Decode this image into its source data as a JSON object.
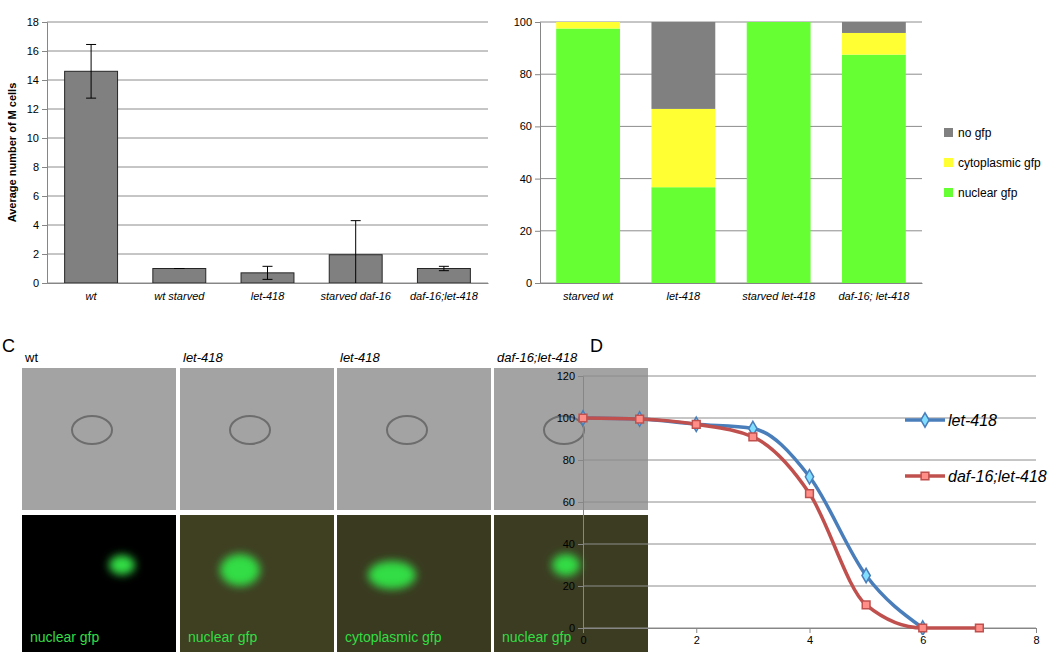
{
  "chart_data": [
    {
      "type": "bar",
      "categories": [
        "wt",
        "wt starved",
        "let-418",
        "starved daf-16",
        "daf-16;let-418"
      ],
      "values": [
        14.6,
        1.0,
        0.7,
        1.95,
        1.0
      ],
      "errors": [
        1.85,
        0,
        0.45,
        2.35,
        0.15
      ],
      "color": "#808080",
      "y_label": "Average number of M cells",
      "ylim": [
        0,
        18
      ],
      "yticks": [
        0,
        2,
        4,
        6,
        8,
        10,
        12,
        14,
        16,
        18
      ],
      "grid": true
    },
    {
      "type": "bar",
      "stacked": true,
      "categories": [
        "starved wt",
        "let-418",
        "starved let-418",
        "daf-16; let-418"
      ],
      "series": [
        {
          "name": "nuclear gfp",
          "color": "#66ff33",
          "values": [
            97.5,
            36.7,
            100,
            87.5
          ]
        },
        {
          "name": "cytoplasmic gfp",
          "color": "#ffff33",
          "values": [
            2.5,
            30.0,
            0,
            8.3
          ]
        },
        {
          "name": "no gfp",
          "color": "#808080",
          "values": [
            0,
            33.3,
            0,
            4.2
          ]
        }
      ],
      "ylim": [
        0,
        100
      ],
      "yticks": [
        0,
        20,
        40,
        60,
        80,
        100
      ],
      "grid": true,
      "legend": "right"
    },
    {
      "type": "line",
      "annotations": [
        "D"
      ],
      "x": [
        0,
        1,
        2,
        3,
        4,
        5,
        6,
        7
      ],
      "series": [
        {
          "name": "let-418",
          "color": "#4a7ebb",
          "marker": "diamond",
          "values": [
            100,
            99.5,
            97,
            95,
            72,
            25,
            0,
            null
          ]
        },
        {
          "name": "daf-16;let-418",
          "color": "#c0504d",
          "marker": "square",
          "values": [
            100,
            99.5,
            97,
            91,
            64,
            11,
            0,
            0
          ]
        }
      ],
      "xlim": [
        0,
        8
      ],
      "xticks": [
        0,
        2,
        4,
        6,
        8
      ],
      "ylim": [
        0,
        120
      ],
      "yticks": [
        0,
        20,
        40,
        60,
        80,
        100,
        120
      ],
      "grid": true,
      "legend": "right"
    }
  ],
  "image_panel": {
    "label": "C",
    "images": [
      {
        "title": "wt",
        "caption": "nuclear gfp"
      },
      {
        "title": "let-418",
        "caption": "nuclear gfp"
      },
      {
        "title": "let-418",
        "caption": "cytoplasmic gfp"
      },
      {
        "title": "daf-16;let-418",
        "caption": "nuclear gfp"
      }
    ]
  }
}
